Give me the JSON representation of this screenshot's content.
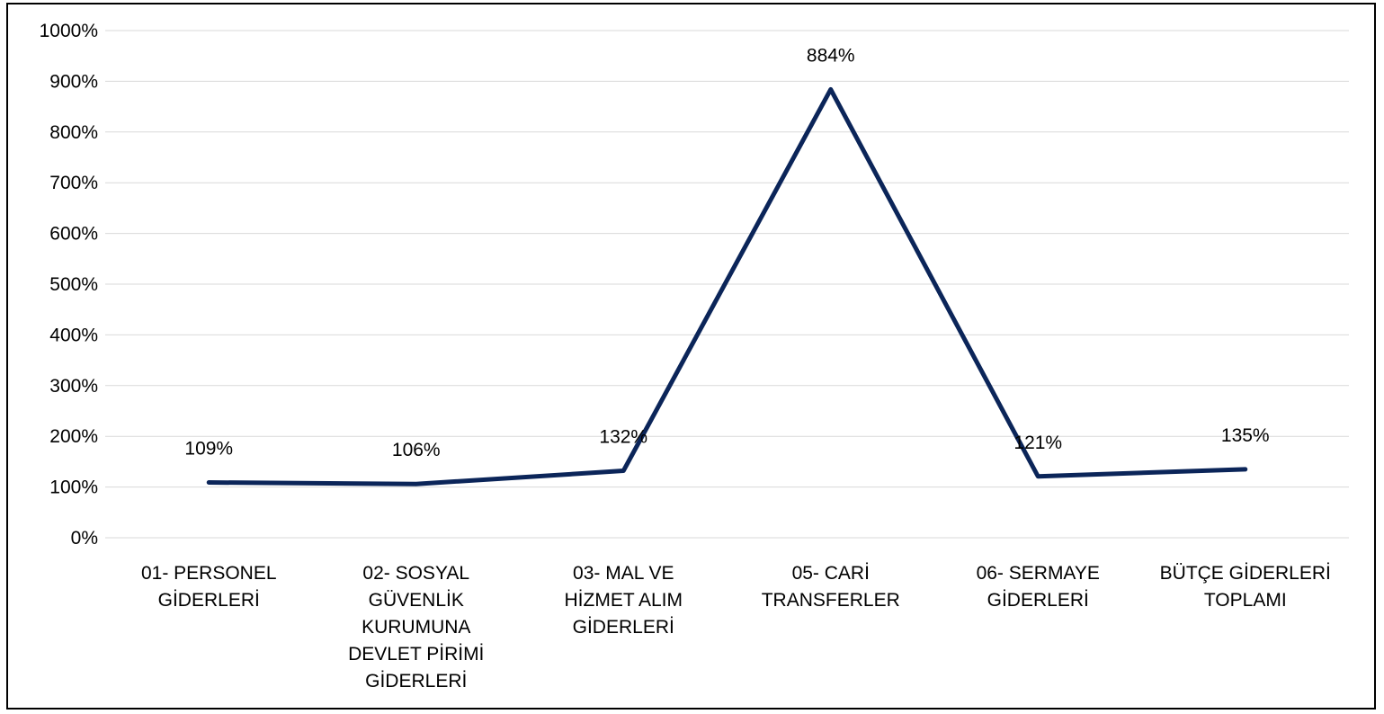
{
  "chart_data": {
    "type": "line",
    "title": "",
    "xlabel": "",
    "ylabel": "",
    "categories": [
      [
        "01- PERSONEL",
        "GİDERLERİ"
      ],
      [
        "02- SOSYAL",
        "GÜVENLİK",
        "KURUMUNA",
        "DEVLET PİRİMİ",
        "GİDERLERİ"
      ],
      [
        "03- MAL VE",
        "HİZMET ALIM",
        "GİDERLERİ"
      ],
      [
        "05- CARİ",
        "TRANSFERLER"
      ],
      [
        "06- SERMAYE",
        "GİDERLERİ"
      ],
      [
        "BÜTÇE GİDERLERİ",
        "TOPLAMI"
      ]
    ],
    "series": [
      {
        "values": [
          109,
          106,
          132,
          884,
          121,
          135
        ],
        "labels": [
          "109%",
          "106%",
          "132%",
          "884%",
          "121%",
          "135%"
        ],
        "color": "#0b2559"
      }
    ],
    "ylim": [
      0,
      1000
    ],
    "yticks": [
      0,
      100,
      200,
      300,
      400,
      500,
      600,
      700,
      800,
      900,
      1000
    ],
    "ytick_labels": [
      "0%",
      "100%",
      "200%",
      "300%",
      "400%",
      "500%",
      "600%",
      "700%",
      "800%",
      "900%",
      "1000%"
    ],
    "grid": true,
    "legend": "none"
  }
}
